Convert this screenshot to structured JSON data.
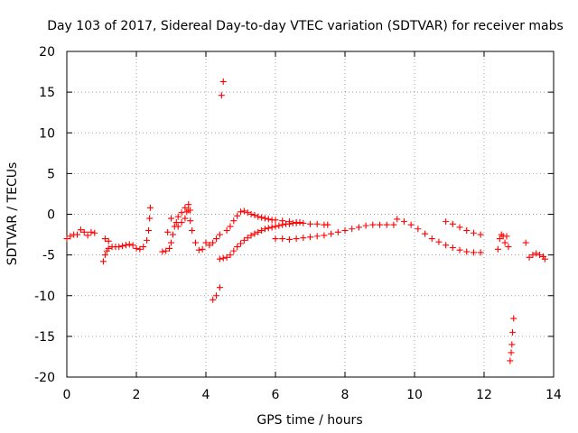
{
  "chart_data": {
    "type": "scatter",
    "title": "Day 103 of 2017, Sidereal Day-to-day VTEC variation (SDTVAR) for receiver mabs",
    "xlabel": "GPS time / hours",
    "ylabel": "SDTVAR / TECUs",
    "xlim": [
      0,
      14
    ],
    "ylim": [
      -20,
      20
    ],
    "xticks": [
      "0",
      "2",
      "4",
      "6",
      "8",
      "10",
      "12",
      "14"
    ],
    "yticks": [
      "20",
      "15",
      "10",
      "5",
      "0",
      "-5",
      "-10",
      "-15",
      "-20"
    ],
    "grid": true,
    "marker": "+",
    "color": "#ff0000",
    "series": [
      {
        "name": "s1",
        "x": [
          0.0,
          0.1,
          0.2,
          0.3,
          0.4,
          0.5,
          0.6,
          0.7,
          0.8
        ],
        "y": [
          -3.0,
          -2.7,
          -2.5,
          -2.5,
          -1.9,
          -2.2,
          -2.6,
          -2.2,
          -2.3
        ]
      },
      {
        "name": "s2",
        "x": [
          1.05,
          1.1,
          1.15,
          1.2,
          1.3,
          1.4,
          1.5,
          1.6,
          1.7,
          1.8,
          1.9,
          2.0,
          2.1,
          2.2,
          2.3,
          2.35,
          2.38,
          2.4
        ],
        "y": [
          -5.8,
          -5.0,
          -4.5,
          -4.2,
          -4.0,
          -4.0,
          -4.0,
          -3.9,
          -3.8,
          -3.7,
          -3.8,
          -4.2,
          -4.3,
          -4.0,
          -3.2,
          -2.0,
          -0.5,
          0.8
        ]
      },
      {
        "name": "s3",
        "x": [
          1.1,
          1.2
        ],
        "y": [
          -3.0,
          -3.3
        ]
      },
      {
        "name": "s4",
        "x": [
          2.75,
          2.85,
          2.95,
          3.0,
          3.05,
          3.1,
          3.15,
          3.2,
          3.3,
          3.4,
          3.45,
          3.5,
          3.55,
          3.6,
          3.7,
          3.8,
          3.9,
          4.0,
          4.1,
          4.2,
          4.3,
          4.4
        ],
        "y": [
          -4.6,
          -4.5,
          -4.2,
          -3.5,
          -2.5,
          -1.5,
          -1.0,
          -1.5,
          -1.0,
          -0.5,
          0.3,
          0.5,
          -0.8,
          -2.0,
          -3.5,
          -4.4,
          -4.3,
          -3.5,
          -3.8,
          -3.5,
          -3.0,
          -2.5
        ]
      },
      {
        "name": "s5",
        "x": [
          2.9,
          3.0
        ],
        "y": [
          -2.2,
          -0.5
        ]
      },
      {
        "name": "s6",
        "x": [
          3.2,
          3.3,
          3.4,
          3.5,
          3.55
        ],
        "y": [
          -0.3,
          0.2,
          0.8,
          1.2,
          0.5
        ]
      },
      {
        "name": "s7",
        "x": [
          4.45,
          4.5
        ],
        "y": [
          14.6,
          16.3
        ]
      },
      {
        "name": "s8",
        "x": [
          4.2,
          4.3,
          4.4
        ],
        "y": [
          -10.5,
          -10.0,
          -9.0
        ]
      },
      {
        "name": "s9",
        "x": [
          4.4,
          4.5,
          4.6,
          4.7,
          4.8,
          4.9,
          5.0,
          5.1,
          5.2,
          5.3,
          5.4,
          5.5,
          5.6,
          5.7,
          5.8,
          5.9,
          6.0,
          6.1,
          6.2,
          6.3,
          6.4,
          6.5,
          6.6,
          6.7
        ],
        "y": [
          -5.5,
          -5.4,
          -5.3,
          -5.0,
          -4.5,
          -4.0,
          -3.6,
          -3.2,
          -2.9,
          -2.6,
          -2.4,
          -2.2,
          -2.0,
          -1.8,
          -1.7,
          -1.6,
          -1.5,
          -1.4,
          -1.3,
          -1.2,
          -1.2,
          -1.1,
          -1.1,
          -1.0
        ]
      },
      {
        "name": "s10",
        "x": [
          4.6,
          4.7,
          4.8,
          4.9,
          5.0,
          5.1,
          5.2,
          5.3,
          5.4,
          5.5,
          5.6,
          5.7,
          5.8,
          5.9,
          6.0,
          6.2,
          6.4,
          6.6,
          6.8,
          7.0,
          7.2,
          7.4,
          7.5
        ],
        "y": [
          -2.0,
          -1.5,
          -0.8,
          -0.2,
          0.3,
          0.4,
          0.2,
          0.0,
          -0.1,
          -0.3,
          -0.4,
          -0.5,
          -0.6,
          -0.7,
          -0.7,
          -0.8,
          -0.9,
          -1.0,
          -1.1,
          -1.2,
          -1.2,
          -1.3,
          -1.3
        ]
      },
      {
        "name": "s11",
        "x": [
          6.0,
          6.2,
          6.4,
          6.6,
          6.8,
          7.0,
          7.2,
          7.4,
          7.6,
          7.8,
          8.0,
          8.2,
          8.4,
          8.6,
          8.8,
          9.0,
          9.2,
          9.4
        ],
        "y": [
          -3.0,
          -3.0,
          -3.1,
          -3.0,
          -2.9,
          -2.8,
          -2.7,
          -2.6,
          -2.4,
          -2.2,
          -2.0,
          -1.8,
          -1.6,
          -1.4,
          -1.3,
          -1.3,
          -1.3,
          -1.3
        ]
      },
      {
        "name": "s12",
        "x": [
          9.5,
          9.7,
          9.9,
          10.1,
          10.3,
          10.5,
          10.7,
          10.9,
          11.1,
          11.3,
          11.5,
          11.7,
          11.9
        ],
        "y": [
          -0.6,
          -0.9,
          -1.3,
          -1.8,
          -2.4,
          -3.0,
          -3.4,
          -3.8,
          -4.1,
          -4.4,
          -4.6,
          -4.7,
          -4.7
        ]
      },
      {
        "name": "s13",
        "x": [
          10.9,
          11.1,
          11.3,
          11.5,
          11.7,
          11.9
        ],
        "y": [
          -0.9,
          -1.2,
          -1.6,
          -2.0,
          -2.3,
          -2.5
        ]
      },
      {
        "name": "s14",
        "x": [
          12.4,
          12.45,
          12.5,
          12.55,
          12.6,
          12.65,
          12.7
        ],
        "y": [
          -4.3,
          -3.0,
          -2.5,
          -2.7,
          -3.5,
          -2.7,
          -4.0
        ]
      },
      {
        "name": "s15",
        "x": [
          12.75,
          12.78,
          12.8,
          12.82,
          12.85
        ],
        "y": [
          -18.0,
          -17.0,
          -16.0,
          -14.5,
          -12.8
        ]
      },
      {
        "name": "s16",
        "x": [
          13.2,
          13.3,
          13.4,
          13.5,
          13.6,
          13.7,
          13.75
        ],
        "y": [
          -3.5,
          -5.3,
          -5.0,
          -4.8,
          -5.0,
          -5.2,
          -5.5
        ]
      }
    ]
  }
}
